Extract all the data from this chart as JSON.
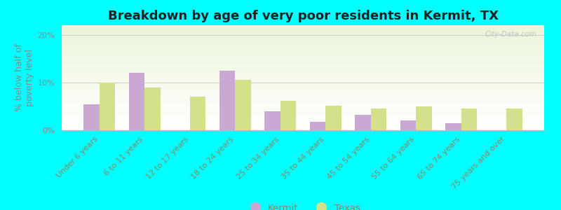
{
  "title": "Breakdown by age of very poor residents in Kermit, TX",
  "ylabel": "% below half of\npoverty level",
  "categories": [
    "Under 6 years",
    "6 to 11 years",
    "12 to 17 years",
    "18 to 24 years",
    "25 to 34 years",
    "35 to 44 years",
    "45 to 54 years",
    "55 to 64 years",
    "65 to 74 years",
    "75 years and over"
  ],
  "kermit_values": [
    5.5,
    12.0,
    0.0,
    12.5,
    4.0,
    1.8,
    3.2,
    2.0,
    1.5,
    0.0
  ],
  "texas_values": [
    10.0,
    9.0,
    7.0,
    10.5,
    6.2,
    5.2,
    4.5,
    5.0,
    4.5,
    4.5
  ],
  "kermit_color": "#c9a8d4",
  "texas_color": "#d4e08a",
  "background_color": "#00ffff",
  "ylim": [
    0,
    22
  ],
  "yticks": [
    0,
    10,
    20
  ],
  "ytick_labels": [
    "0%",
    "10%",
    "20%"
  ],
  "bar_width": 0.35,
  "title_fontsize": 13,
  "axis_label_fontsize": 9,
  "tick_fontsize": 8,
  "xtick_color": "#888866",
  "ytick_color": "#888888",
  "ylabel_color": "#888888",
  "legend_labels": [
    "Kermit",
    "Texas"
  ],
  "watermark": "City-Data.com"
}
